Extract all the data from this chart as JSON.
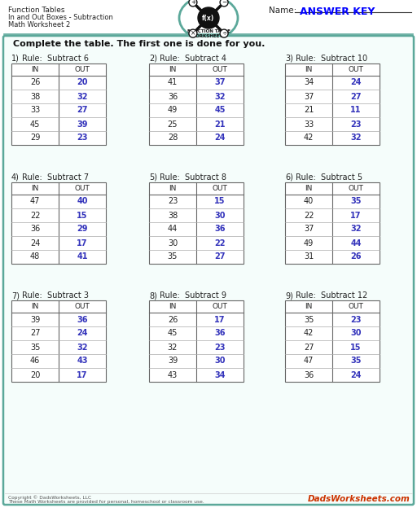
{
  "title_line1": "Function Tables",
  "title_line2": "In and Out Boxes - Subtraction",
  "title_line3": "Math Worksheet 2",
  "name_label": "Name:",
  "answer_key": "ANSWER KEY",
  "instruction": "Complete the table. The first one is done for you.",
  "bg_color": "#ffffff",
  "border_color": "#5ba89a",
  "answer_color": "#3333bb",
  "tables": [
    {
      "num": "1)",
      "rule": "Rule:  Subtract 6",
      "in": [
        26,
        38,
        33,
        45,
        29
      ],
      "out": [
        20,
        32,
        27,
        39,
        23
      ]
    },
    {
      "num": "2)",
      "rule": "Rule:  Subtract 4",
      "in": [
        41,
        36,
        49,
        25,
        28
      ],
      "out": [
        37,
        32,
        45,
        21,
        24
      ]
    },
    {
      "num": "3)",
      "rule": "Rule:  Subtract 10",
      "in": [
        34,
        37,
        21,
        33,
        42
      ],
      "out": [
        24,
        27,
        11,
        23,
        32
      ]
    },
    {
      "num": "4)",
      "rule": "Rule:  Subtract 7",
      "in": [
        47,
        22,
        36,
        24,
        48
      ],
      "out": [
        40,
        15,
        29,
        17,
        41
      ]
    },
    {
      "num": "5)",
      "rule": "Rule:  Subtract 8",
      "in": [
        23,
        38,
        44,
        30,
        35
      ],
      "out": [
        15,
        30,
        36,
        22,
        27
      ]
    },
    {
      "num": "6)",
      "rule": "Rule:  Subtract 5",
      "in": [
        40,
        22,
        37,
        49,
        31
      ],
      "out": [
        35,
        17,
        32,
        44,
        26
      ]
    },
    {
      "num": "7)",
      "rule": "Rule:  Subtract 3",
      "in": [
        39,
        27,
        35,
        46,
        20
      ],
      "out": [
        36,
        24,
        32,
        43,
        17
      ]
    },
    {
      "num": "8)",
      "rule": "Rule:  Subtract 9",
      "in": [
        26,
        45,
        32,
        39,
        43
      ],
      "out": [
        17,
        36,
        23,
        30,
        34
      ]
    },
    {
      "num": "9)",
      "rule": "Rule:  Subtract 12",
      "in": [
        35,
        42,
        27,
        47,
        36
      ],
      "out": [
        23,
        30,
        15,
        35,
        24
      ]
    }
  ],
  "footer_left1": "Copyright © DadsWorksheets, LLC",
  "footer_left2": "These Math Worksheets are provided for personal, homeschool or classroom use.",
  "footer_right": "DadsWorksheets.com"
}
